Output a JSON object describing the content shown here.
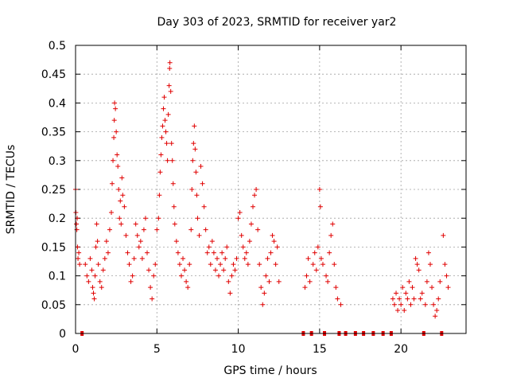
{
  "chart_data": {
    "type": "scatter",
    "title": "Day 303 of 2023, SRMTID for receiver yar2",
    "xlabel": "GPS time / hours",
    "ylabel": "SRMTID / TECUs",
    "xlim": [
      0,
      24
    ],
    "ylim": [
      0,
      0.5
    ],
    "x_ticks": [
      {
        "value": 0,
        "label": "0"
      },
      {
        "value": 5,
        "label": "5"
      },
      {
        "value": 10,
        "label": "10"
      },
      {
        "value": 15,
        "label": "15"
      },
      {
        "value": 20,
        "label": "20"
      }
    ],
    "y_ticks": [
      {
        "value": 0,
        "label": "0"
      },
      {
        "value": 0.05,
        "label": "0.05"
      },
      {
        "value": 0.1,
        "label": "0.1"
      },
      {
        "value": 0.15,
        "label": "0.15"
      },
      {
        "value": 0.2,
        "label": "0.2"
      },
      {
        "value": 0.25,
        "label": "0.25"
      },
      {
        "value": 0.3,
        "label": "0.3"
      },
      {
        "value": 0.35,
        "label": "0.35"
      },
      {
        "value": 0.4,
        "label": "0.4"
      },
      {
        "value": 0.45,
        "label": "0.45"
      },
      {
        "value": 0.5,
        "label": "0.5"
      }
    ],
    "grid": true,
    "marker": "plus",
    "color": "#e00000",
    "series": [
      {
        "name": "yar2",
        "points": [
          [
            0.0,
            0.25
          ],
          [
            0.02,
            0.21
          ],
          [
            0.05,
            0.19
          ],
          [
            0.08,
            0.18
          ],
          [
            0.1,
            0.2
          ],
          [
            0.12,
            0.15
          ],
          [
            0.15,
            0.13
          ],
          [
            0.2,
            0.14
          ],
          [
            0.25,
            0.12
          ],
          [
            0.4,
            0.0
          ],
          [
            0.6,
            0.12
          ],
          [
            0.7,
            0.1
          ],
          [
            0.8,
            0.09
          ],
          [
            0.9,
            0.13
          ],
          [
            1.0,
            0.11
          ],
          [
            1.05,
            0.08
          ],
          [
            1.1,
            0.07
          ],
          [
            1.15,
            0.06
          ],
          [
            1.2,
            0.1
          ],
          [
            1.25,
            0.15
          ],
          [
            1.3,
            0.19
          ],
          [
            1.35,
            0.16
          ],
          [
            1.4,
            0.12
          ],
          [
            1.5,
            0.09
          ],
          [
            1.6,
            0.08
          ],
          [
            1.7,
            0.11
          ],
          [
            1.8,
            0.13
          ],
          [
            1.9,
            0.16
          ],
          [
            2.0,
            0.14
          ],
          [
            2.1,
            0.18
          ],
          [
            2.2,
            0.21
          ],
          [
            2.25,
            0.26
          ],
          [
            2.3,
            0.3
          ],
          [
            2.35,
            0.34
          ],
          [
            2.38,
            0.37
          ],
          [
            2.4,
            0.4
          ],
          [
            2.45,
            0.39
          ],
          [
            2.5,
            0.35
          ],
          [
            2.55,
            0.31
          ],
          [
            2.6,
            0.29
          ],
          [
            2.65,
            0.25
          ],
          [
            2.7,
            0.2
          ],
          [
            2.75,
            0.23
          ],
          [
            2.8,
            0.19
          ],
          [
            2.85,
            0.27
          ],
          [
            2.9,
            0.24
          ],
          [
            3.0,
            0.22
          ],
          [
            3.1,
            0.17
          ],
          [
            3.2,
            0.14
          ],
          [
            3.3,
            0.12
          ],
          [
            3.4,
            0.09
          ],
          [
            3.5,
            0.1
          ],
          [
            3.6,
            0.13
          ],
          [
            3.7,
            0.19
          ],
          [
            3.8,
            0.17
          ],
          [
            3.9,
            0.15
          ],
          [
            4.0,
            0.16
          ],
          [
            4.1,
            0.13
          ],
          [
            4.2,
            0.18
          ],
          [
            4.3,
            0.2
          ],
          [
            4.4,
            0.14
          ],
          [
            4.5,
            0.11
          ],
          [
            4.6,
            0.08
          ],
          [
            4.7,
            0.06
          ],
          [
            4.8,
            0.1
          ],
          [
            4.9,
            0.12
          ],
          [
            5.0,
            0.18
          ],
          [
            5.1,
            0.2
          ],
          [
            5.15,
            0.24
          ],
          [
            5.2,
            0.28
          ],
          [
            5.25,
            0.31
          ],
          [
            5.3,
            0.34
          ],
          [
            5.35,
            0.36
          ],
          [
            5.4,
            0.39
          ],
          [
            5.45,
            0.41
          ],
          [
            5.5,
            0.37
          ],
          [
            5.55,
            0.35
          ],
          [
            5.6,
            0.33
          ],
          [
            5.65,
            0.3
          ],
          [
            5.7,
            0.38
          ],
          [
            5.75,
            0.43
          ],
          [
            5.78,
            0.46
          ],
          [
            5.8,
            0.47
          ],
          [
            5.85,
            0.42
          ],
          [
            5.9,
            0.33
          ],
          [
            5.95,
            0.3
          ],
          [
            6.0,
            0.26
          ],
          [
            6.05,
            0.22
          ],
          [
            6.1,
            0.19
          ],
          [
            6.2,
            0.16
          ],
          [
            6.3,
            0.14
          ],
          [
            6.4,
            0.12
          ],
          [
            6.5,
            0.1
          ],
          [
            6.6,
            0.13
          ],
          [
            6.7,
            0.11
          ],
          [
            6.8,
            0.09
          ],
          [
            6.9,
            0.08
          ],
          [
            7.0,
            0.12
          ],
          [
            7.1,
            0.18
          ],
          [
            7.15,
            0.25
          ],
          [
            7.2,
            0.3
          ],
          [
            7.25,
            0.33
          ],
          [
            7.3,
            0.36
          ],
          [
            7.35,
            0.32
          ],
          [
            7.4,
            0.28
          ],
          [
            7.45,
            0.24
          ],
          [
            7.5,
            0.2
          ],
          [
            7.6,
            0.17
          ],
          [
            7.7,
            0.29
          ],
          [
            7.8,
            0.26
          ],
          [
            7.9,
            0.22
          ],
          [
            8.0,
            0.18
          ],
          [
            8.1,
            0.14
          ],
          [
            8.2,
            0.15
          ],
          [
            8.3,
            0.12
          ],
          [
            8.4,
            0.16
          ],
          [
            8.5,
            0.14
          ],
          [
            8.6,
            0.11
          ],
          [
            8.7,
            0.13
          ],
          [
            8.8,
            0.1
          ],
          [
            8.9,
            0.12
          ],
          [
            9.0,
            0.14
          ],
          [
            9.1,
            0.11
          ],
          [
            9.2,
            0.13
          ],
          [
            9.3,
            0.15
          ],
          [
            9.4,
            0.09
          ],
          [
            9.5,
            0.07
          ],
          [
            9.6,
            0.1
          ],
          [
            9.7,
            0.12
          ],
          [
            9.8,
            0.11
          ],
          [
            9.9,
            0.13
          ],
          [
            10.0,
            0.2
          ],
          [
            10.1,
            0.21
          ],
          [
            10.2,
            0.17
          ],
          [
            10.3,
            0.15
          ],
          [
            10.4,
            0.13
          ],
          [
            10.5,
            0.14
          ],
          [
            10.6,
            0.12
          ],
          [
            10.7,
            0.16
          ],
          [
            10.8,
            0.19
          ],
          [
            10.9,
            0.22
          ],
          [
            11.0,
            0.24
          ],
          [
            11.1,
            0.25
          ],
          [
            11.2,
            0.18
          ],
          [
            11.3,
            0.12
          ],
          [
            11.4,
            0.08
          ],
          [
            11.5,
            0.05
          ],
          [
            11.6,
            0.07
          ],
          [
            11.7,
            0.1
          ],
          [
            11.8,
            0.13
          ],
          [
            11.9,
            0.09
          ],
          [
            12.0,
            0.14
          ],
          [
            12.1,
            0.17
          ],
          [
            12.2,
            0.16
          ],
          [
            12.3,
            0.12
          ],
          [
            12.4,
            0.15
          ],
          [
            12.5,
            0.09
          ],
          [
            14.0,
            0.0
          ],
          [
            14.1,
            0.08
          ],
          [
            14.2,
            0.1
          ],
          [
            14.3,
            0.13
          ],
          [
            14.4,
            0.09
          ],
          [
            14.5,
            0.0
          ],
          [
            14.6,
            0.12
          ],
          [
            14.7,
            0.14
          ],
          [
            14.8,
            0.11
          ],
          [
            14.9,
            0.15
          ],
          [
            15.0,
            0.25
          ],
          [
            15.05,
            0.22
          ],
          [
            15.1,
            0.13
          ],
          [
            15.2,
            0.12
          ],
          [
            15.3,
            0.0
          ],
          [
            15.4,
            0.1
          ],
          [
            15.5,
            0.09
          ],
          [
            15.6,
            0.14
          ],
          [
            15.7,
            0.17
          ],
          [
            15.8,
            0.19
          ],
          [
            15.9,
            0.12
          ],
          [
            16.0,
            0.08
          ],
          [
            16.1,
            0.06
          ],
          [
            16.2,
            0.0
          ],
          [
            16.3,
            0.05
          ],
          [
            16.6,
            0.0
          ],
          [
            17.2,
            0.0
          ],
          [
            17.7,
            0.0
          ],
          [
            18.3,
            0.0
          ],
          [
            18.9,
            0.0
          ],
          [
            19.4,
            0.0
          ],
          [
            19.5,
            0.06
          ],
          [
            19.6,
            0.05
          ],
          [
            19.7,
            0.07
          ],
          [
            19.8,
            0.04
          ],
          [
            19.9,
            0.06
          ],
          [
            20.0,
            0.05
          ],
          [
            20.1,
            0.08
          ],
          [
            20.2,
            0.04
          ],
          [
            20.3,
            0.07
          ],
          [
            20.4,
            0.06
          ],
          [
            20.5,
            0.09
          ],
          [
            20.6,
            0.05
          ],
          [
            20.7,
            0.08
          ],
          [
            20.8,
            0.06
          ],
          [
            20.9,
            0.13
          ],
          [
            21.0,
            0.12
          ],
          [
            21.1,
            0.11
          ],
          [
            21.2,
            0.06
          ],
          [
            21.3,
            0.07
          ],
          [
            21.4,
            0.0
          ],
          [
            21.5,
            0.05
          ],
          [
            21.6,
            0.09
          ],
          [
            21.7,
            0.14
          ],
          [
            21.8,
            0.12
          ],
          [
            21.9,
            0.08
          ],
          [
            22.0,
            0.05
          ],
          [
            22.1,
            0.03
          ],
          [
            22.2,
            0.04
          ],
          [
            22.3,
            0.06
          ],
          [
            22.4,
            0.09
          ],
          [
            22.5,
            0.0
          ],
          [
            22.6,
            0.17
          ],
          [
            22.7,
            0.12
          ],
          [
            22.8,
            0.1
          ],
          [
            22.9,
            0.08
          ]
        ]
      }
    ]
  }
}
